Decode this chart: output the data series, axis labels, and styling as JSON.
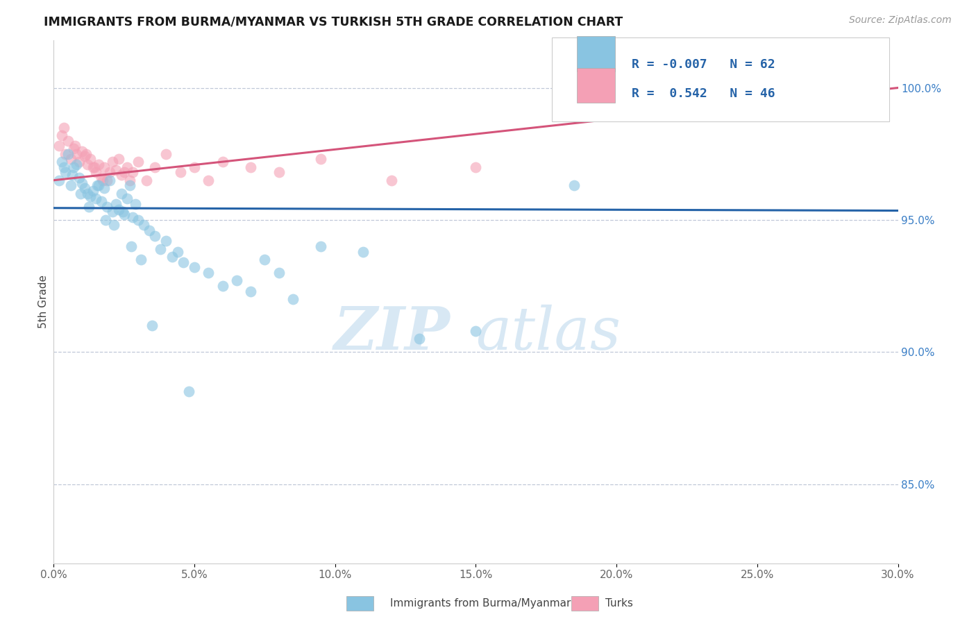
{
  "title": "IMMIGRANTS FROM BURMA/MYANMAR VS TURKISH 5TH GRADE CORRELATION CHART",
  "source": "Source: ZipAtlas.com",
  "ylabel": "5th Grade",
  "xmin": 0.0,
  "xmax": 30.0,
  "ymin": 82.0,
  "ymax": 101.8,
  "yticks": [
    85.0,
    90.0,
    95.0,
    100.0
  ],
  "legend1_label": "Immigrants from Burma/Myanmar",
  "legend2_label": "Turks",
  "r1": -0.007,
  "n1": 62,
  "r2": 0.542,
  "n2": 46,
  "blue_color": "#89c4e1",
  "pink_color": "#f4a0b5",
  "blue_line_color": "#2563a8",
  "pink_line_color": "#d4547a",
  "watermark_zip": "ZIP",
  "watermark_atlas": "atlas",
  "blue_trendline_y_at_0": 95.45,
  "blue_trendline_y_at_30": 95.35,
  "pink_trendline_y_at_0": 96.5,
  "pink_trendline_y_at_30": 100.0,
  "blue_scatter_x": [
    0.2,
    0.3,
    0.4,
    0.5,
    0.6,
    0.7,
    0.8,
    0.9,
    1.0,
    1.1,
    1.2,
    1.3,
    1.4,
    1.5,
    1.6,
    1.7,
    1.8,
    1.9,
    2.0,
    2.1,
    2.2,
    2.3,
    2.4,
    2.5,
    2.6,
    2.7,
    2.8,
    2.9,
    3.0,
    3.2,
    3.4,
    3.6,
    3.8,
    4.0,
    4.2,
    4.4,
    4.6,
    5.0,
    5.5,
    6.0,
    6.5,
    7.0,
    7.5,
    8.0,
    8.5,
    9.5,
    11.0,
    13.0,
    15.0,
    0.35,
    0.65,
    0.95,
    1.25,
    1.55,
    1.85,
    2.15,
    2.45,
    2.75,
    3.1,
    3.5,
    4.8,
    18.5
  ],
  "blue_scatter_y": [
    96.5,
    97.2,
    96.8,
    97.5,
    96.3,
    97.0,
    97.1,
    96.6,
    96.4,
    96.2,
    96.0,
    95.9,
    96.1,
    95.8,
    96.3,
    95.7,
    96.2,
    95.5,
    96.5,
    95.3,
    95.6,
    95.4,
    96.0,
    95.2,
    95.8,
    96.3,
    95.1,
    95.6,
    95.0,
    94.8,
    94.6,
    94.4,
    93.9,
    94.2,
    93.6,
    93.8,
    93.4,
    93.2,
    93.0,
    92.5,
    92.7,
    92.3,
    93.5,
    93.0,
    92.0,
    94.0,
    93.8,
    90.5,
    90.8,
    97.0,
    96.7,
    96.0,
    95.5,
    96.3,
    95.0,
    94.8,
    95.3,
    94.0,
    93.5,
    91.0,
    88.5,
    96.3
  ],
  "pink_scatter_x": [
    0.2,
    0.3,
    0.4,
    0.5,
    0.6,
    0.7,
    0.8,
    0.9,
    1.0,
    1.1,
    1.2,
    1.3,
    1.4,
    1.5,
    1.6,
    1.7,
    1.8,
    1.9,
    2.0,
    2.1,
    2.2,
    2.3,
    2.4,
    2.5,
    2.6,
    2.7,
    2.8,
    3.0,
    3.3,
    3.6,
    4.0,
    4.5,
    5.0,
    5.5,
    6.0,
    7.0,
    8.0,
    9.5,
    12.0,
    15.0,
    0.35,
    0.75,
    1.15,
    1.45,
    1.75,
    28.8
  ],
  "pink_scatter_y": [
    97.8,
    98.2,
    97.5,
    98.0,
    97.3,
    97.7,
    97.5,
    97.2,
    97.6,
    97.4,
    97.1,
    97.3,
    97.0,
    96.8,
    97.1,
    96.6,
    97.0,
    96.5,
    96.8,
    97.2,
    96.9,
    97.3,
    96.7,
    96.8,
    97.0,
    96.5,
    96.8,
    97.2,
    96.5,
    97.0,
    97.5,
    96.8,
    97.0,
    96.5,
    97.2,
    97.0,
    96.8,
    97.3,
    96.5,
    97.0,
    98.5,
    97.8,
    97.5,
    97.0,
    96.5,
    100.3
  ]
}
